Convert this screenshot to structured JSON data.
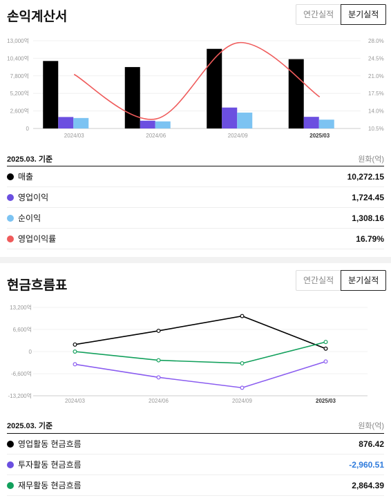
{
  "income": {
    "title": "손익계산서",
    "toggle": {
      "annual": "연간실적",
      "quarterly": "분기실적",
      "selected": "quarterly"
    },
    "basis": "2025.03. 기준",
    "unit": "원화(억)",
    "rows": [
      {
        "label": "매출",
        "value": "10,272.15",
        "color": "#000000"
      },
      {
        "label": "영업이익",
        "value": "1,724.45",
        "color": "#6b4fe0"
      },
      {
        "label": "순이익",
        "value": "1,308.16",
        "color": "#7cc3f2"
      },
      {
        "label": "영업이익률",
        "value": "16.79%",
        "color": "#ef5b5b"
      }
    ]
  },
  "cashflow": {
    "title": "현금흐름표",
    "toggle": {
      "annual": "연간실적",
      "quarterly": "분기실적",
      "selected": "quarterly"
    },
    "basis": "2025.03. 기준",
    "unit": "원화(억)",
    "rows": [
      {
        "label": "영업활동 현금흐름",
        "value": "876.42",
        "color": "#000000",
        "negative": false
      },
      {
        "label": "투자활동 현금흐름",
        "value": "-2,960.51",
        "color": "#6b4fe0",
        "negative": true
      },
      {
        "label": "재무활동 현금흐름",
        "value": "2,864.39",
        "color": "#12a05c",
        "negative": false
      }
    ]
  },
  "chart_data": [
    {
      "type": "bar",
      "categories": [
        "2024/03",
        "2024/06",
        "2024/09",
        "2025/03"
      ],
      "series": [
        {
          "name": "매출",
          "values": [
            10000,
            9100,
            11800,
            10272.15
          ],
          "color": "#000000"
        },
        {
          "name": "영업이익",
          "values": [
            1700,
            1150,
            3100,
            1724.45
          ],
          "color": "#6b4fe0"
        },
        {
          "name": "순이익",
          "values": [
            1550,
            1050,
            2350,
            1308.16
          ],
          "color": "#7cc3f2"
        }
      ],
      "line_series": {
        "name": "영업이익률",
        "values": [
          21.3,
          12.4,
          27.6,
          16.79
        ],
        "color": "#ef5b5b"
      },
      "ylim": [
        0,
        13000
      ],
      "yticks": [
        "0",
        "2,600억",
        "5,200억",
        "7,800억",
        "10,400억",
        "13,000억"
      ],
      "ylim_right": [
        10.5,
        28.0
      ],
      "yticks_right": [
        "10.5%",
        "14.0%",
        "17.5%",
        "21.0%",
        "24.5%",
        "28.0%"
      ],
      "grid": true
    },
    {
      "type": "line",
      "categories": [
        "2024/03",
        "2024/06",
        "2024/09",
        "2025/03"
      ],
      "series": [
        {
          "name": "영업활동 현금흐름",
          "values": [
            2100,
            6200,
            10600,
            876.42
          ],
          "color": "#000000"
        },
        {
          "name": "투자활동 현금흐름",
          "values": [
            -3800,
            -7700,
            -10800,
            -2960.51
          ],
          "color": "#8a5cf0"
        },
        {
          "name": "재무활동 현금흐름",
          "values": [
            0,
            -2600,
            -3500,
            2864.39
          ],
          "color": "#12a05c"
        }
      ],
      "ylim": [
        -13200,
        13200
      ],
      "yticks": [
        "-13,200억",
        "-6,600억",
        "0",
        "6,600억",
        "13,200억"
      ],
      "grid": true
    }
  ]
}
